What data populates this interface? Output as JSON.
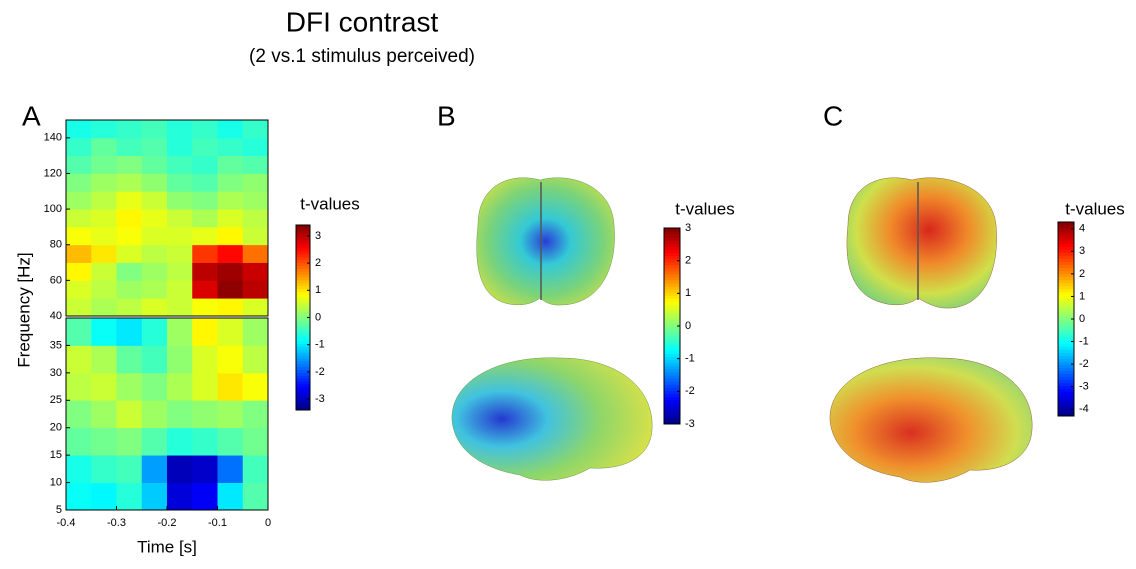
{
  "title": "DFI contrast",
  "subtitle": "(2 vs.1 stimulus perceived)",
  "chart_data": [
    {
      "type": "heatmap",
      "panel_label": "A",
      "xlabel": "Time [s]",
      "ylabel": "Frequency [Hz]",
      "xlim": [
        -0.4,
        0
      ],
      "xticks": [
        -0.4,
        -0.3,
        -0.2,
        -0.1,
        0
      ],
      "x_edges": [
        -0.4,
        -0.35,
        -0.3,
        -0.25,
        -0.2,
        -0.15,
        -0.1,
        -0.05,
        0
      ],
      "panels": [
        {
          "ylim": [
            40,
            150
          ],
          "yticks": [
            40,
            60,
            80,
            100,
            120,
            140
          ],
          "y_edges": [
            40,
            50,
            60,
            70,
            80,
            90,
            100,
            110,
            120,
            130,
            140,
            150
          ],
          "values": [
            [
              0.5,
              0.3,
              0.4,
              0.6,
              0.5,
              0.8,
              0.9,
              0.6
            ],
            [
              0.6,
              0.4,
              0.2,
              0.3,
              0.5,
              2.8,
              3.3,
              3.0
            ],
            [
              0.9,
              0.5,
              0.0,
              0.2,
              0.4,
              3.0,
              3.2,
              2.9
            ],
            [
              1.3,
              1.0,
              0.6,
              0.4,
              0.5,
              2.2,
              2.5,
              1.8
            ],
            [
              0.8,
              0.7,
              0.8,
              0.6,
              0.6,
              0.7,
              0.9,
              0.5
            ],
            [
              0.5,
              0.6,
              0.9,
              0.7,
              0.5,
              0.3,
              0.6,
              0.4
            ],
            [
              0.2,
              0.4,
              0.7,
              0.5,
              0.1,
              0.0,
              0.3,
              0.2
            ],
            [
              0.0,
              0.2,
              0.3,
              0.1,
              -0.2,
              -0.3,
              0.0,
              0.1
            ],
            [
              -0.3,
              -0.1,
              0.0,
              -0.2,
              -0.4,
              -0.5,
              -0.2,
              -0.3
            ],
            [
              -0.5,
              -0.2,
              -0.4,
              -0.3,
              -0.6,
              -0.4,
              -0.5,
              -0.6
            ],
            [
              -0.7,
              -0.6,
              -0.5,
              -0.4,
              -0.6,
              -0.5,
              -0.7,
              -0.5
            ]
          ]
        },
        {
          "ylim": [
            5,
            40
          ],
          "yticks": [
            5,
            10,
            15,
            20,
            25,
            30,
            35
          ],
          "y_edges": [
            5,
            10,
            15,
            20,
            25,
            30,
            35,
            40
          ],
          "values": [
            [
              -0.8,
              -0.9,
              -0.6,
              -1.2,
              -2.8,
              -2.6,
              -1.0,
              -0.3
            ],
            [
              -0.7,
              -0.5,
              -0.4,
              -1.5,
              -3.0,
              -2.9,
              -1.8,
              -0.4
            ],
            [
              -0.2,
              -0.1,
              0.0,
              -0.3,
              -0.6,
              -0.5,
              -0.3,
              -0.1
            ],
            [
              0.0,
              0.2,
              0.5,
              0.2,
              0.0,
              0.1,
              0.2,
              0.0
            ],
            [
              0.4,
              0.5,
              0.2,
              0.0,
              0.3,
              0.6,
              1.0,
              0.8
            ],
            [
              0.5,
              0.3,
              -0.2,
              -0.4,
              0.1,
              0.6,
              0.8,
              0.4
            ],
            [
              -0.3,
              -0.8,
              -1.0,
              -0.6,
              0.2,
              0.9,
              0.6,
              0.2
            ]
          ]
        }
      ],
      "colorbar": {
        "label": "t-values",
        "lim": [
          -3.4,
          3.4
        ],
        "ticks": [
          -3,
          -2,
          -1,
          0,
          1,
          2,
          3
        ]
      }
    },
    {
      "type": "brain",
      "panel_label": "B",
      "colorbar": {
        "label": "t-values",
        "lim": [
          -3,
          3
        ],
        "ticks": [
          -3,
          -2,
          -1,
          0,
          1,
          2,
          3
        ]
      }
    },
    {
      "type": "brain",
      "panel_label": "C",
      "colorbar": {
        "label": "t-values",
        "lim": [
          -4.3,
          4.3
        ],
        "ticks": [
          -4,
          -3,
          -2,
          -1,
          0,
          1,
          2,
          3,
          4
        ]
      }
    }
  ]
}
